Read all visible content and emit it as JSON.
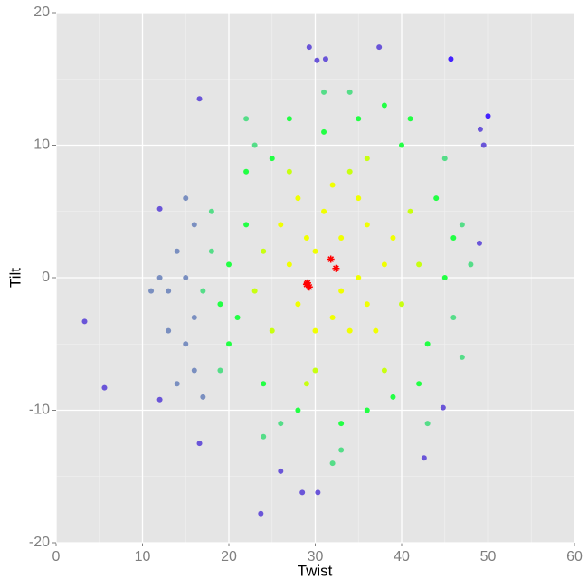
{
  "chart_data": {
    "type": "scatter",
    "x_label": "Twist",
    "y_label": "Tilt",
    "xlim": [
      0,
      60
    ],
    "ylim": [
      -20,
      20
    ],
    "xticks": [
      0,
      10,
      20,
      30,
      40,
      50,
      60
    ],
    "yticks": [
      -20,
      -10,
      0,
      10,
      20
    ],
    "xminorticks": [
      5,
      15,
      25,
      35,
      45,
      55
    ],
    "yminorticks": [
      -15,
      -5,
      5,
      15
    ],
    "grid": true,
    "series": [
      {
        "color": "#f0ff00",
        "marker": "circle",
        "x": [
          30,
          33,
          35,
          28,
          32,
          36,
          31,
          34,
          27,
          38,
          29,
          33,
          36,
          30,
          35,
          26,
          37,
          32,
          28,
          39
        ],
        "y": [
          2,
          3,
          0,
          -2,
          -3,
          4,
          5,
          -4,
          1,
          1,
          3,
          -1,
          -2,
          -4,
          6,
          4,
          -4,
          7,
          6,
          3
        ]
      },
      {
        "color": "#c8ff10",
        "marker": "circle",
        "x": [
          24,
          25,
          40,
          41,
          30,
          34,
          27,
          38,
          23,
          42,
          36,
          29
        ],
        "y": [
          2,
          -4,
          -2,
          5,
          -7,
          8,
          8,
          -7,
          -1,
          1,
          9,
          -8
        ]
      },
      {
        "color": "#22ff44",
        "marker": "circle",
        "x": [
          22,
          21,
          20,
          44,
          43,
          31,
          35,
          28,
          36,
          25,
          40,
          39,
          22,
          45,
          46,
          24,
          33,
          42,
          20,
          38,
          27,
          41,
          19
        ],
        "y": [
          4,
          -3,
          -5,
          6,
          -5,
          11,
          12,
          -10,
          -10,
          9,
          10,
          -9,
          8,
          0,
          3,
          -8,
          -11,
          -8,
          1,
          13,
          12,
          12,
          -2
        ]
      },
      {
        "color": "#55dd88",
        "marker": "circle",
        "x": [
          18,
          17,
          19,
          47,
          46,
          45,
          31,
          34,
          24,
          33,
          23,
          47,
          18,
          26,
          43,
          48,
          32,
          22
        ],
        "y": [
          2,
          -1,
          -7,
          4,
          -3,
          9,
          14,
          14,
          -12,
          -13,
          10,
          -6,
          5,
          -11,
          -11,
          1,
          -14,
          12
        ]
      },
      {
        "color": "#7a8fc0",
        "marker": "circle",
        "x": [
          16,
          15,
          14,
          15,
          16,
          13,
          17,
          14,
          12,
          11,
          16,
          15,
          13
        ],
        "y": [
          -3,
          0,
          2,
          -5,
          -7,
          -1,
          -9,
          -8,
          0,
          -1,
          4,
          6,
          -4
        ]
      },
      {
        "color": "#6a55d8",
        "marker": "circle",
        "x": [
          3.3,
          5.6,
          16.6,
          12,
          23.7,
          28.5,
          30.3,
          29.3,
          37.4,
          49.1,
          49.5,
          49,
          31.2,
          30.2,
          44.8,
          42.6,
          26,
          16.6,
          12
        ],
        "y": [
          -3.3,
          -8.3,
          13.5,
          5.2,
          -17.8,
          -16.2,
          -16.2,
          17.4,
          17.4,
          11.2,
          10,
          2.6,
          16.5,
          16.4,
          -9.8,
          -13.6,
          -14.6,
          -12.5,
          -9.2
        ]
      },
      {
        "color": "#4422ff",
        "marker": "circle",
        "x": [
          50,
          45.7
        ],
        "y": [
          12.2,
          16.5
        ]
      },
      {
        "color": "#ff0000",
        "marker": "star",
        "x": [
          29,
          29.3,
          31.8,
          32.4,
          29.1
        ],
        "y": [
          -0.5,
          -0.7,
          1.4,
          0.7,
          -0.4
        ]
      }
    ]
  }
}
